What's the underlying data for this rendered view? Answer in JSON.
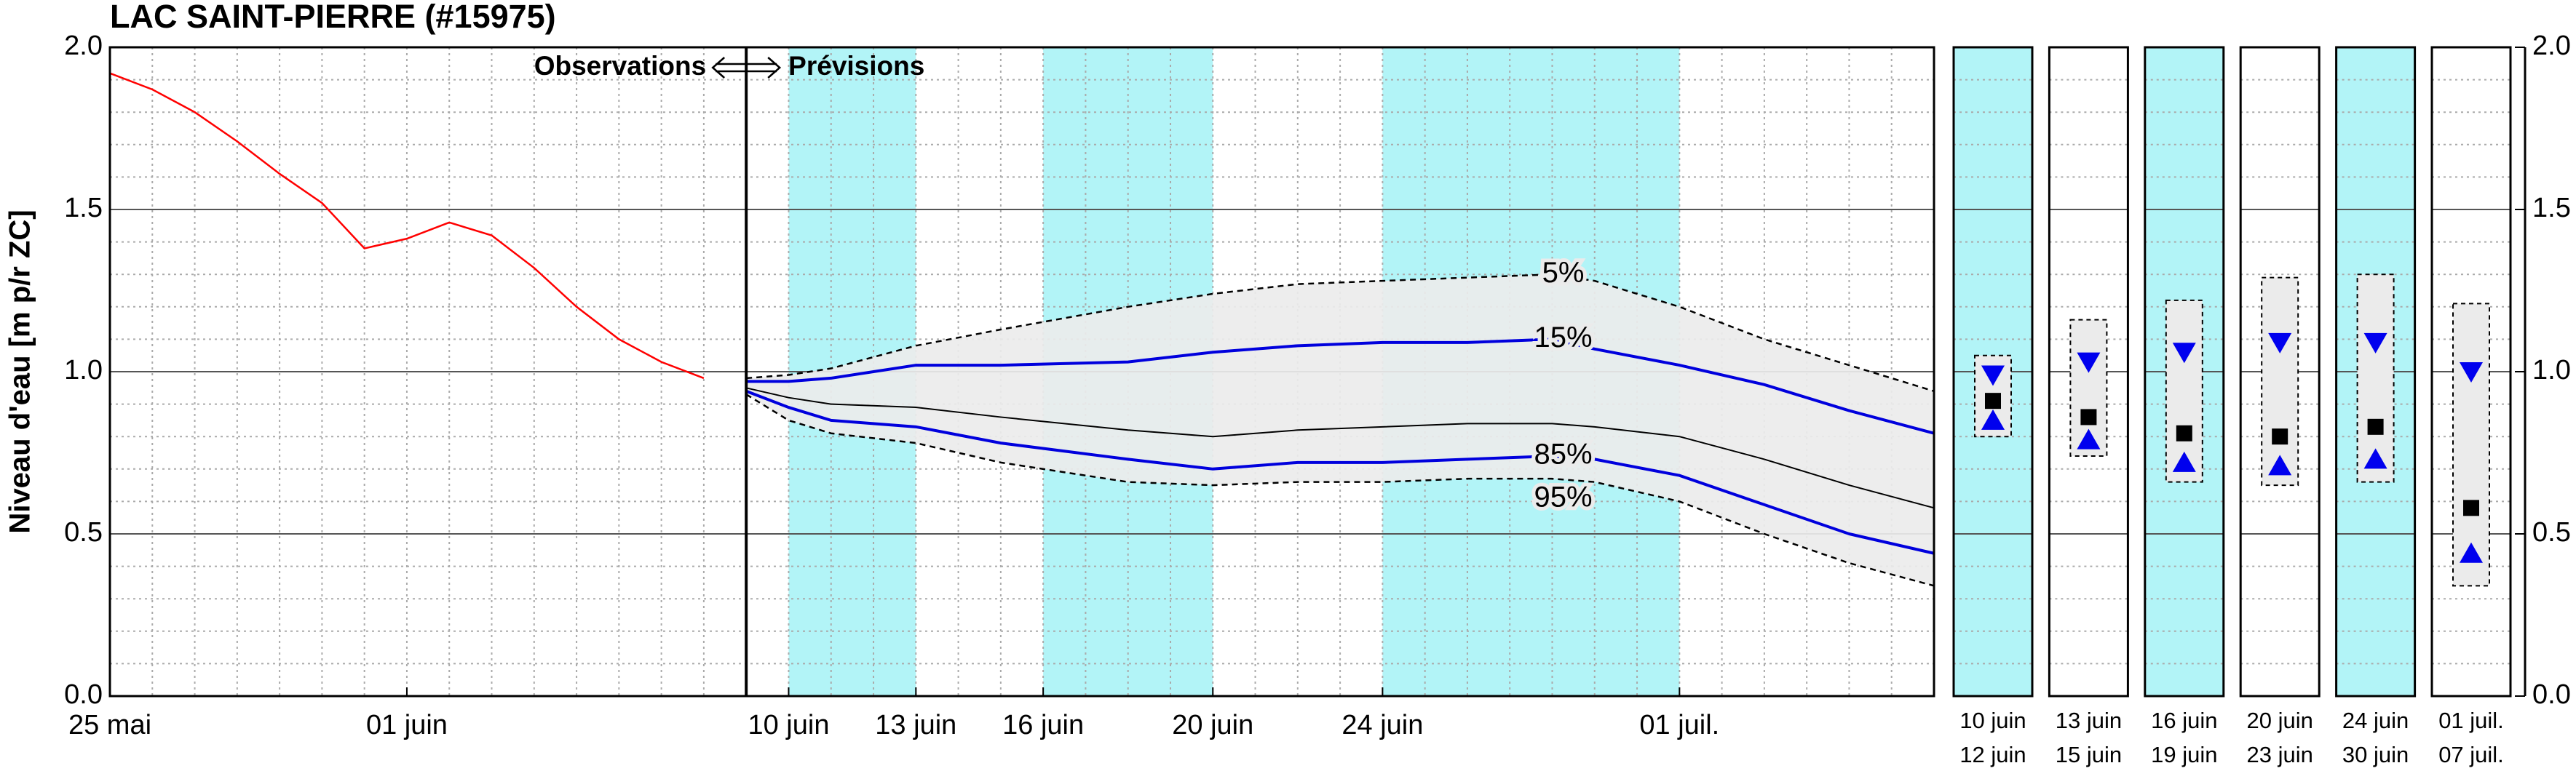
{
  "chart_data": [
    {
      "type": "line",
      "title": "LAC SAINT-PIERRE (#15975)",
      "ylabel": "Niveau d'eau [m p/r ZC]",
      "annotations": {
        "left": "Observations",
        "right": "Prévisions"
      },
      "xlim": [
        0,
        43
      ],
      "xticks": [
        {
          "value": 0,
          "label": "25 mai"
        },
        {
          "value": 7,
          "label": "01 juin"
        },
        {
          "value": 16,
          "label": "10 juin"
        },
        {
          "value": 19,
          "label": "13 juin"
        },
        {
          "value": 22,
          "label": "16 juin"
        },
        {
          "value": 26,
          "label": "20 juin"
        },
        {
          "value": 30,
          "label": "24 juin"
        },
        {
          "value": 37,
          "label": "01 juil."
        }
      ],
      "ylim": [
        0,
        2
      ],
      "yticks": [
        {
          "value": 0,
          "label": "0.0"
        },
        {
          "value": 0.5,
          "label": "0.5"
        },
        {
          "value": 1,
          "label": "1.0"
        },
        {
          "value": 1.5,
          "label": "1.5"
        },
        {
          "value": 2,
          "label": "2.0"
        }
      ],
      "grid": true,
      "divider_x": 15,
      "shaded_ranges": [
        [
          16,
          19
        ],
        [
          22,
          26
        ],
        [
          30,
          37
        ]
      ],
      "shade_color": "#b2f4f7",
      "band_color": "#ebebeb",
      "series": [
        {
          "color": "#ff0000",
          "x": [
            0,
            1,
            2,
            3,
            4,
            5,
            6,
            7,
            8,
            9,
            10,
            11,
            12,
            13,
            14
          ],
          "values": [
            1.92,
            1.87,
            1.8,
            1.71,
            1.61,
            1.52,
            1.38,
            1.41,
            1.46,
            1.42,
            1.32,
            1.2,
            1.1,
            1.03,
            0.98
          ]
        },
        {
          "name": "5%",
          "color": "#000000",
          "dashed": true,
          "x": [
            15,
            16,
            17,
            19,
            21,
            24,
            26,
            28,
            30,
            32,
            34,
            35,
            37,
            39,
            41,
            43
          ],
          "values": [
            0.98,
            0.99,
            1.01,
            1.08,
            1.13,
            1.2,
            1.24,
            1.27,
            1.28,
            1.29,
            1.3,
            1.28,
            1.2,
            1.1,
            1.02,
            0.94
          ]
        },
        {
          "name": "15%",
          "color": "#0000dd",
          "x": [
            15,
            16,
            17,
            19,
            21,
            24,
            26,
            28,
            30,
            32,
            34,
            35,
            37,
            39,
            41,
            43
          ],
          "values": [
            0.97,
            0.97,
            0.98,
            1.02,
            1.02,
            1.03,
            1.06,
            1.08,
            1.09,
            1.09,
            1.1,
            1.07,
            1.02,
            0.96,
            0.88,
            0.81
          ]
        },
        {
          "color": "#000000",
          "thin": true,
          "x": [
            15,
            16,
            17,
            19,
            21,
            24,
            26,
            28,
            30,
            32,
            34,
            35,
            37,
            39,
            41,
            43
          ],
          "values": [
            0.95,
            0.92,
            0.9,
            0.89,
            0.86,
            0.82,
            0.8,
            0.82,
            0.83,
            0.84,
            0.84,
            0.83,
            0.8,
            0.73,
            0.65,
            0.58
          ]
        },
        {
          "name": "85%",
          "color": "#0000dd",
          "x": [
            15,
            16,
            17,
            19,
            21,
            24,
            26,
            28,
            30,
            32,
            34,
            35,
            37,
            39,
            41,
            43
          ],
          "values": [
            0.94,
            0.89,
            0.85,
            0.83,
            0.78,
            0.73,
            0.7,
            0.72,
            0.72,
            0.73,
            0.74,
            0.73,
            0.68,
            0.59,
            0.5,
            0.44
          ]
        },
        {
          "name": "95%",
          "color": "#000000",
          "dashed": true,
          "x": [
            15,
            16,
            17,
            19,
            21,
            24,
            26,
            28,
            30,
            32,
            34,
            35,
            37,
            39,
            41,
            43
          ],
          "values": [
            0.93,
            0.85,
            0.81,
            0.78,
            0.72,
            0.66,
            0.65,
            0.66,
            0.66,
            0.67,
            0.67,
            0.66,
            0.6,
            0.5,
            0.41,
            0.34
          ]
        }
      ]
    },
    {
      "type": "weekly_ranges",
      "period_start": [
        "10 juin",
        "13 juin",
        "16 juin",
        "20 juin",
        "24 juin",
        "01 juil."
      ],
      "period_end": [
        "12 juin",
        "15 juin",
        "19 juin",
        "23 juin",
        "30 juin",
        "07 juil."
      ],
      "shaded": [
        true,
        false,
        true,
        false,
        true,
        false
      ],
      "shade_color": "#b2f4f7",
      "range_color": "#ebebeb",
      "ylim": [
        0,
        2
      ],
      "yticks": [
        {
          "value": 0,
          "label": "0.0"
        },
        {
          "value": 0.5,
          "label": "0.5"
        },
        {
          "value": 1,
          "label": "1.0"
        },
        {
          "value": 1.5,
          "label": "1.5"
        },
        {
          "value": 2,
          "label": "2.0"
        }
      ],
      "range": {
        "low": [
          0.8,
          0.74,
          0.66,
          0.65,
          0.66,
          0.34
        ],
        "high": [
          1.05,
          1.16,
          1.22,
          1.29,
          1.3,
          1.21
        ]
      },
      "series": [
        {
          "marker": "triangle-down",
          "color": "#0000ee",
          "values": [
            0.99,
            1.03,
            1.06,
            1.09,
            1.09,
            1.0
          ]
        },
        {
          "marker": "square",
          "color": "#000000",
          "values": [
            0.91,
            0.86,
            0.81,
            0.8,
            0.83,
            0.58
          ]
        },
        {
          "marker": "triangle-up",
          "color": "#0000ee",
          "values": [
            0.85,
            0.79,
            0.72,
            0.71,
            0.73,
            0.44
          ]
        }
      ]
    }
  ]
}
